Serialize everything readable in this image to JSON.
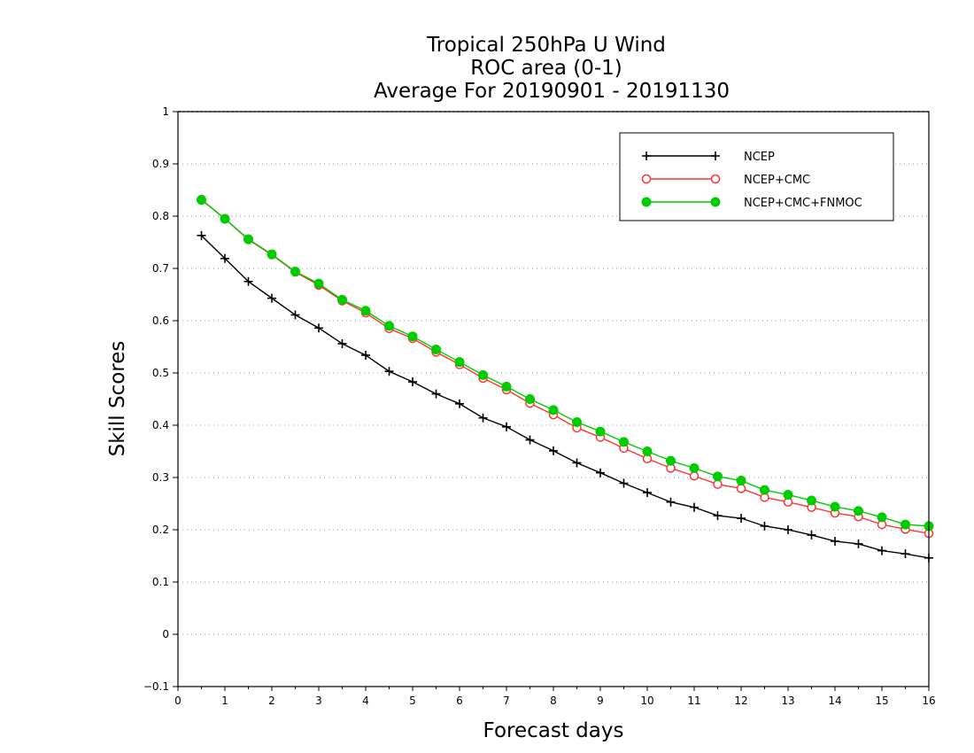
{
  "chart_data": {
    "type": "line",
    "title_lines": [
      "Tropical 250hPa U Wind",
      "ROC area (0-1)",
      "Average For 20190901 - 20191130"
    ],
    "xlabel": "Forecast days",
    "ylabel": "Skill Scores",
    "xlim": [
      0,
      16
    ],
    "ylim": [
      -0.1,
      1
    ],
    "x_ticks": [
      "0",
      "1",
      "2",
      "3",
      "4",
      "5",
      "6",
      "7",
      "8",
      "9",
      "10",
      "11",
      "12",
      "13",
      "14",
      "15",
      "16"
    ],
    "y_ticks": [
      "−0.1",
      "0",
      "0.1",
      "0.2",
      "0.3",
      "0.4",
      "0.5",
      "0.6",
      "0.7",
      "0.8",
      "0.9",
      "1"
    ],
    "y_tick_values": [
      -0.1,
      0,
      0.1,
      0.2,
      0.3,
      0.4,
      0.5,
      0.6,
      0.7,
      0.8,
      0.9,
      1.0
    ],
    "grid": "horizontal dotted",
    "legend_position": "top-right",
    "x": [
      0.5,
      1,
      1.5,
      2,
      2.5,
      3,
      3.5,
      4,
      4.5,
      5,
      5.5,
      6,
      6.5,
      7,
      7.5,
      8,
      8.5,
      9,
      9.5,
      10,
      10.5,
      11,
      11.5,
      12,
      12.5,
      13,
      13.5,
      14,
      14.5,
      15,
      15.5,
      16
    ],
    "series": [
      {
        "name": "NCEP",
        "color": "#000000",
        "marker": "plus",
        "values": [
          0.763,
          0.719,
          0.675,
          0.643,
          0.611,
          0.586,
          0.556,
          0.534,
          0.503,
          0.483,
          0.46,
          0.441,
          0.414,
          0.397,
          0.372,
          0.351,
          0.328,
          0.309,
          0.289,
          0.271,
          0.253,
          0.243,
          0.227,
          0.222,
          0.207,
          0.2,
          0.19,
          0.178,
          0.173,
          0.16,
          0.154,
          0.146
        ]
      },
      {
        "name": "NCEP+CMC",
        "color": "#ff3333",
        "marker": "open-circle",
        "values": [
          0.832,
          0.795,
          0.755,
          0.726,
          0.693,
          0.668,
          0.638,
          0.615,
          0.585,
          0.566,
          0.54,
          0.516,
          0.49,
          0.468,
          0.442,
          0.42,
          0.395,
          0.377,
          0.356,
          0.336,
          0.318,
          0.303,
          0.287,
          0.279,
          0.262,
          0.253,
          0.243,
          0.232,
          0.225,
          0.21,
          0.201,
          0.193
        ]
      },
      {
        "name": "NCEP+CMC+FNMOC",
        "color": "#00cc00",
        "marker": "filled-circle",
        "values": [
          0.831,
          0.795,
          0.756,
          0.727,
          0.694,
          0.671,
          0.64,
          0.619,
          0.59,
          0.57,
          0.545,
          0.521,
          0.496,
          0.474,
          0.45,
          0.429,
          0.406,
          0.388,
          0.368,
          0.35,
          0.332,
          0.318,
          0.302,
          0.294,
          0.276,
          0.267,
          0.256,
          0.244,
          0.236,
          0.224,
          0.21,
          0.207
        ]
      }
    ]
  }
}
